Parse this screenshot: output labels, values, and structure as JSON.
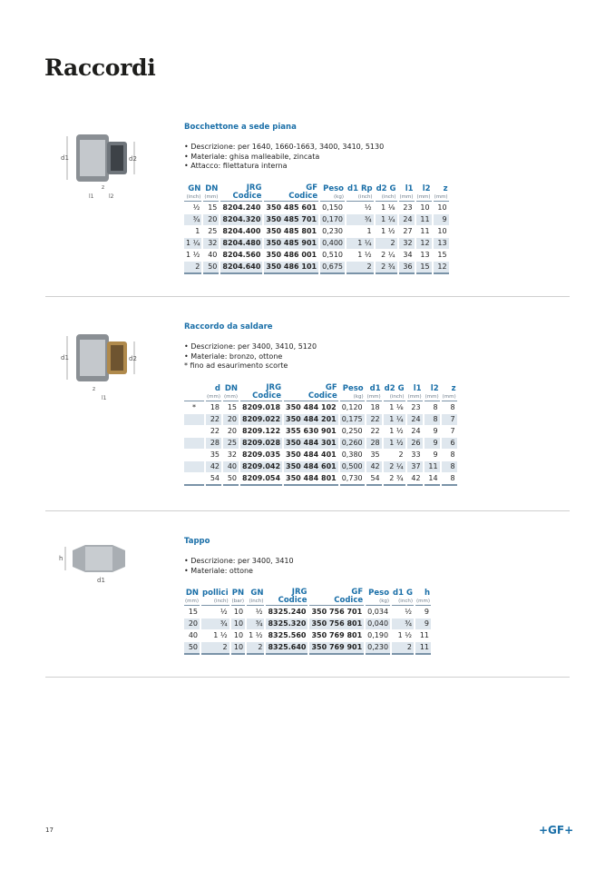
{
  "page": {
    "title": "Raccordi",
    "page_number": "17",
    "logo": "+GF+",
    "accent_color": "#1a6fa8"
  },
  "sections": [
    {
      "title": "Bocchettone a sede piana",
      "bullets": [
        "Descrizione: per 1640, 1660-1663, 3400, 3410, 5130",
        "Materiale: ghisa malleabile, zincata",
        "Attacco: filettatura interna"
      ],
      "note": "",
      "image_labels": [
        "d1",
        "d2",
        "z",
        "l1",
        "l2"
      ],
      "columns": [
        {
          "name": "GN",
          "unit": "(inch)"
        },
        {
          "name": "DN",
          "unit": "(mm)"
        },
        {
          "name": "JRG",
          "unit": "Codice"
        },
        {
          "name": "GF",
          "unit": "Codice"
        },
        {
          "name": "Peso",
          "unit": "(kg)"
        },
        {
          "name": "d1 Rp",
          "unit": "(inch)"
        },
        {
          "name": "d2 G",
          "unit": "(inch)"
        },
        {
          "name": "l1",
          "unit": "(mm)"
        },
        {
          "name": "l2",
          "unit": "(mm)"
        },
        {
          "name": "z",
          "unit": "(mm)"
        }
      ],
      "bold_columns": [
        2,
        3
      ],
      "rows": [
        [
          "½",
          "15",
          "8204.240",
          "350 485 601",
          "0,150",
          "½",
          "1 ⅛",
          "23",
          "10",
          "10"
        ],
        [
          "¾",
          "20",
          "8204.320",
          "350 485 701",
          "0,170",
          "¾",
          "1 ¼",
          "24",
          "11",
          "9"
        ],
        [
          "1",
          "25",
          "8204.400",
          "350 485 801",
          "0,230",
          "1",
          "1 ½",
          "27",
          "11",
          "10"
        ],
        [
          "1 ¼",
          "32",
          "8204.480",
          "350 485 901",
          "0,400",
          "1 ¼",
          "2",
          "32",
          "12",
          "13"
        ],
        [
          "1 ½",
          "40",
          "8204.560",
          "350 486 001",
          "0,510",
          "1 ½",
          "2 ¼",
          "34",
          "13",
          "15"
        ],
        [
          "2",
          "50",
          "8204.640",
          "350 486 101",
          "0,675",
          "2",
          "2 ¾",
          "36",
          "15",
          "12"
        ]
      ]
    },
    {
      "title": "Raccordo da saldare",
      "bullets": [
        "Descrizione: per 3400, 3410, 5120",
        "Materiale: bronzo, ottone"
      ],
      "note": "* fino ad esaurimento scorte",
      "image_labels": [
        "d1",
        "d2",
        "z",
        "l1"
      ],
      "columns": [
        {
          "name": "",
          "unit": ""
        },
        {
          "name": "d",
          "unit": "(mm)"
        },
        {
          "name": "DN",
          "unit": "(mm)"
        },
        {
          "name": "JRG",
          "unit": "Codice"
        },
        {
          "name": "GF",
          "unit": "Codice"
        },
        {
          "name": "Peso",
          "unit": "(kg)"
        },
        {
          "name": "d1",
          "unit": "(mm)"
        },
        {
          "name": "d2 G",
          "unit": "(inch)"
        },
        {
          "name": "l1",
          "unit": "(mm)"
        },
        {
          "name": "l2",
          "unit": "(mm)"
        },
        {
          "name": "z",
          "unit": "(mm)"
        }
      ],
      "bold_columns": [
        3,
        4
      ],
      "rows": [
        [
          "*",
          "18",
          "15",
          "8209.018",
          "350 484 102",
          "0,120",
          "18",
          "1 ⅛",
          "23",
          "8",
          "8"
        ],
        [
          "",
          "22",
          "20",
          "8209.022",
          "350 484 201",
          "0,175",
          "22",
          "1 ¼",
          "24",
          "8",
          "7"
        ],
        [
          "",
          "22",
          "20",
          "8209.122",
          "355 630 901",
          "0,250",
          "22",
          "1 ½",
          "24",
          "9",
          "7"
        ],
        [
          "",
          "28",
          "25",
          "8209.028",
          "350 484 301",
          "0,260",
          "28",
          "1 ½",
          "26",
          "9",
          "6"
        ],
        [
          "",
          "35",
          "32",
          "8209.035",
          "350 484 401",
          "0,380",
          "35",
          "2",
          "33",
          "9",
          "8"
        ],
        [
          "",
          "42",
          "40",
          "8209.042",
          "350 484 601",
          "0,500",
          "42",
          "2 ¼",
          "37",
          "11",
          "8"
        ],
        [
          "",
          "54",
          "50",
          "8209.054",
          "350 484 801",
          "0,730",
          "54",
          "2 ¾",
          "42",
          "14",
          "8"
        ]
      ]
    },
    {
      "title": "Tappo",
      "bullets": [
        "Descrizione: per 3400, 3410",
        "Materiale: ottone"
      ],
      "note": "",
      "image_labels": [
        "h",
        "d1"
      ],
      "columns": [
        {
          "name": "DN",
          "unit": "(mm)"
        },
        {
          "name": "pollici",
          "unit": "(inch)"
        },
        {
          "name": "PN",
          "unit": "(bar)"
        },
        {
          "name": "GN",
          "unit": "(inch)"
        },
        {
          "name": "JRG",
          "unit": "Codice"
        },
        {
          "name": "GF",
          "unit": "Codice"
        },
        {
          "name": "Peso",
          "unit": "(kg)"
        },
        {
          "name": "d1 G",
          "unit": "(inch)"
        },
        {
          "name": "h",
          "unit": "(mm)"
        }
      ],
      "bold_columns": [
        4,
        5
      ],
      "rows": [
        [
          "15",
          "½",
          "10",
          "½",
          "8325.240",
          "350 756 701",
          "0,034",
          "½",
          "9"
        ],
        [
          "20",
          "¾",
          "10",
          "¾",
          "8325.320",
          "350 756 801",
          "0,040",
          "¾",
          "9"
        ],
        [
          "40",
          "1 ½",
          "10",
          "1 ½",
          "8325.560",
          "350 769 801",
          "0,190",
          "1 ½",
          "11"
        ],
        [
          "50",
          "2",
          "10",
          "2",
          "8325.640",
          "350 769 901",
          "0,230",
          "2",
          "11"
        ]
      ]
    }
  ]
}
